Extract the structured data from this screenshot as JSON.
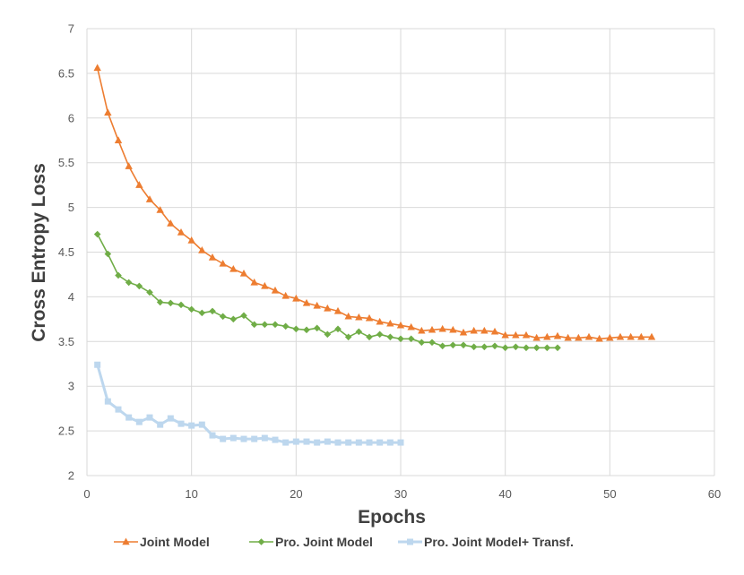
{
  "chart_data": {
    "type": "line",
    "xlabel": "Epochs",
    "ylabel": "Cross Entropy Loss",
    "xlim": [
      0,
      60
    ],
    "ylim": [
      2,
      7
    ],
    "x_ticks": [
      "0",
      "10",
      "20",
      "30",
      "40",
      "50",
      "60"
    ],
    "y_ticks": [
      "2",
      "2.5",
      "3",
      "3.5",
      "4",
      "4.5",
      "5",
      "5.5",
      "6",
      "6.5",
      "7"
    ],
    "grid": true,
    "legend_position": "bottom",
    "series": [
      {
        "name": "Joint Model",
        "color": "#ED7D31",
        "marker": "triangle",
        "x": [
          1,
          2,
          3,
          4,
          5,
          6,
          7,
          8,
          9,
          10,
          11,
          12,
          13,
          14,
          15,
          16,
          17,
          18,
          19,
          20,
          21,
          22,
          23,
          24,
          25,
          26,
          27,
          28,
          29,
          30,
          31,
          32,
          33,
          34,
          35,
          36,
          37,
          38,
          39,
          40,
          41,
          42,
          43,
          44,
          45,
          46,
          47,
          48,
          49,
          50,
          51,
          52,
          53,
          54
        ],
        "values": [
          6.56,
          6.06,
          5.75,
          5.46,
          5.25,
          5.09,
          4.97,
          4.82,
          4.72,
          4.63,
          4.52,
          4.44,
          4.37,
          4.31,
          4.26,
          4.16,
          4.12,
          4.07,
          4.01,
          3.98,
          3.93,
          3.9,
          3.87,
          3.84,
          3.78,
          3.77,
          3.76,
          3.72,
          3.7,
          3.68,
          3.66,
          3.62,
          3.63,
          3.64,
          3.63,
          3.6,
          3.62,
          3.62,
          3.61,
          3.57,
          3.57,
          3.57,
          3.54,
          3.55,
          3.56,
          3.54,
          3.54,
          3.55,
          3.53,
          3.54,
          3.55,
          3.55,
          3.55,
          3.55
        ]
      },
      {
        "name": "Pro. Joint Model",
        "color": "#70AD47",
        "marker": "diamond",
        "x": [
          1,
          2,
          3,
          4,
          5,
          6,
          7,
          8,
          9,
          10,
          11,
          12,
          13,
          14,
          15,
          16,
          17,
          18,
          19,
          20,
          21,
          22,
          23,
          24,
          25,
          26,
          27,
          28,
          29,
          30,
          31,
          32,
          33,
          34,
          35,
          36,
          37,
          38,
          39,
          40,
          41,
          42,
          43,
          44,
          45
        ],
        "values": [
          4.7,
          4.48,
          4.24,
          4.16,
          4.12,
          4.05,
          3.94,
          3.93,
          3.91,
          3.86,
          3.82,
          3.84,
          3.78,
          3.75,
          3.79,
          3.69,
          3.69,
          3.69,
          3.67,
          3.64,
          3.63,
          3.65,
          3.58,
          3.64,
          3.55,
          3.61,
          3.55,
          3.58,
          3.55,
          3.53,
          3.53,
          3.49,
          3.49,
          3.45,
          3.46,
          3.46,
          3.44,
          3.44,
          3.45,
          3.43,
          3.44,
          3.43,
          3.43,
          3.43,
          3.43
        ]
      },
      {
        "name": "Pro. Joint Model+ Transf.",
        "color": "#BDD7EE",
        "marker": "square",
        "x": [
          1,
          2,
          3,
          4,
          5,
          6,
          7,
          8,
          9,
          10,
          11,
          12,
          13,
          14,
          15,
          16,
          17,
          18,
          19,
          20,
          21,
          22,
          23,
          24,
          25,
          26,
          27,
          28,
          29,
          30
        ],
        "values": [
          3.24,
          2.83,
          2.74,
          2.65,
          2.6,
          2.65,
          2.57,
          2.64,
          2.58,
          2.56,
          2.57,
          2.45,
          2.41,
          2.42,
          2.41,
          2.41,
          2.42,
          2.4,
          2.37,
          2.38,
          2.38,
          2.37,
          2.38,
          2.37,
          2.37,
          2.37,
          2.37,
          2.37,
          2.37,
          2.37
        ]
      }
    ]
  }
}
